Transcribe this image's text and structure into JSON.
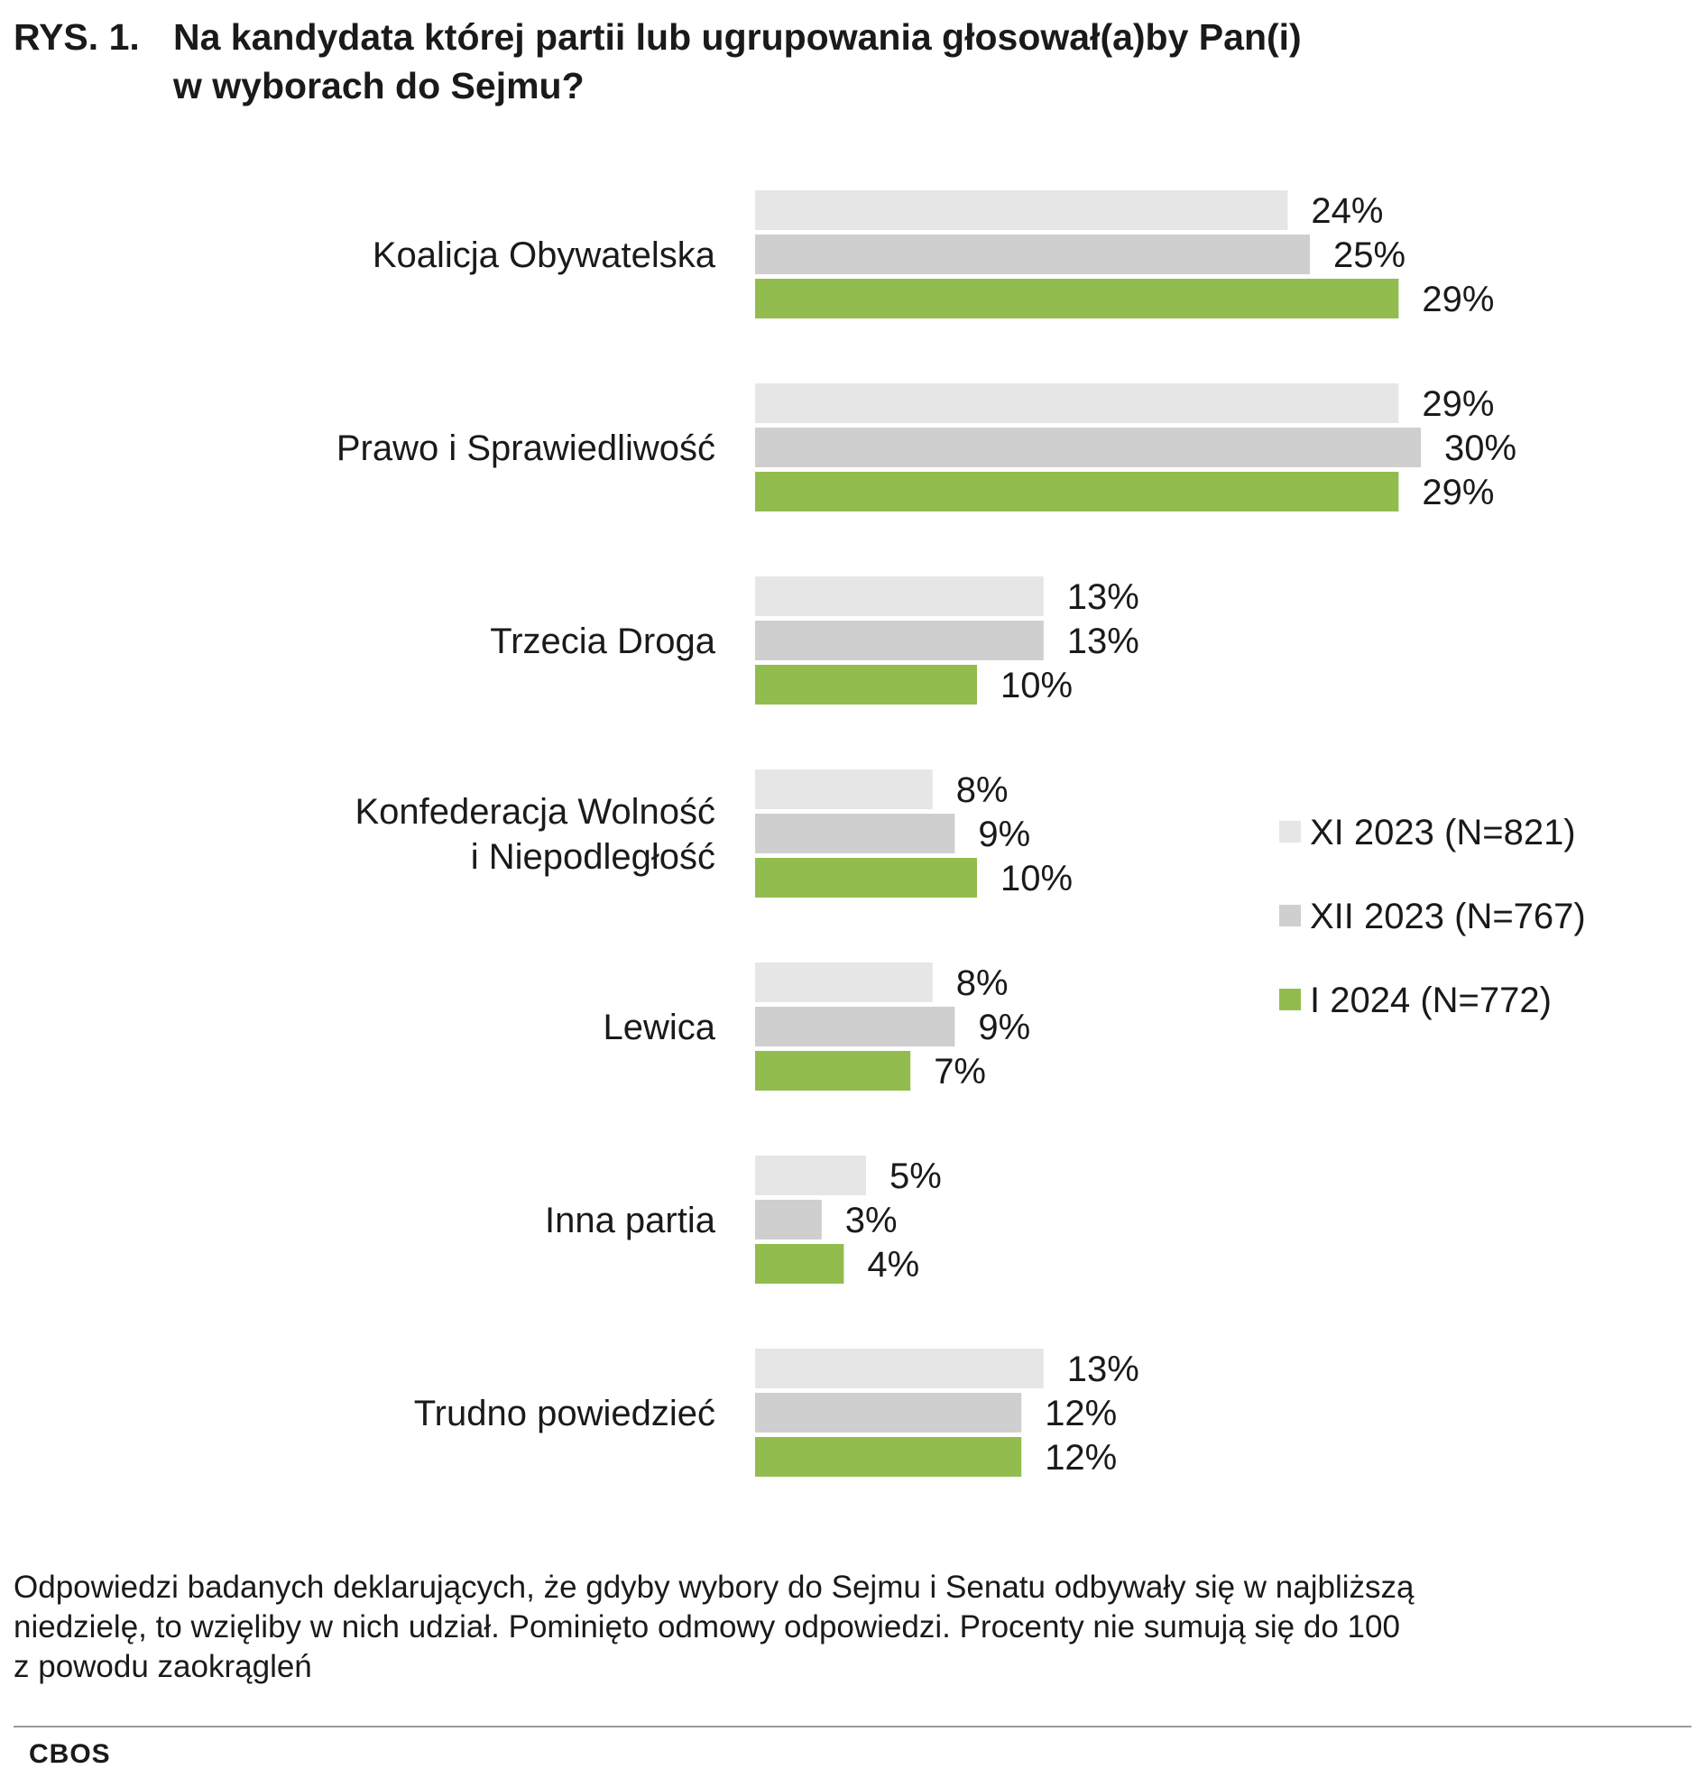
{
  "header": {
    "prefix": "RYS. 1.",
    "title": "Na kandydata której partii lub ugrupowania głosował(a)by Pan(i)\nw wyborach do Sejmu?"
  },
  "chart_data": {
    "type": "bar",
    "orientation": "horizontal",
    "title": "Na kandydata której partii lub ugrupowania głosował(a)by Pan(i) w wyborach do Sejmu?",
    "categories": [
      "Koalicja Obywatelska",
      "Prawo i Sprawiedliwość",
      "Trzecia Droga",
      "Konfederacja Wolność\ni Niepodległość",
      "Lewica",
      "Inna partia",
      "Trudno powiedzieć"
    ],
    "series": [
      {
        "name": "XI 2023 (N=821)",
        "color": "#e6e6e6",
        "values": [
          24,
          29,
          13,
          8,
          8,
          5,
          13
        ]
      },
      {
        "name": "XII 2023 (N=767)",
        "color": "#cfcfcf",
        "values": [
          25,
          30,
          13,
          9,
          9,
          3,
          12
        ]
      },
      {
        "name": "I 2024 (N=772)",
        "color": "#92bd4e",
        "values": [
          29,
          29,
          10,
          10,
          7,
          4,
          12
        ]
      }
    ],
    "value_suffix": "%",
    "xlim": [
      0,
      30
    ],
    "legend_position": "right",
    "grid": false
  },
  "note": "Odpowiedzi badanych deklarujących, że gdyby wybory do Sejmu i Senatu odbywały się w najbliższą\n niedzielę, to wzięliby w nich udział. Pominięto odmowy odpowiedzi.  Procenty nie sumują się do 100\nz powodu zaokrągleń",
  "source": "CBOS"
}
